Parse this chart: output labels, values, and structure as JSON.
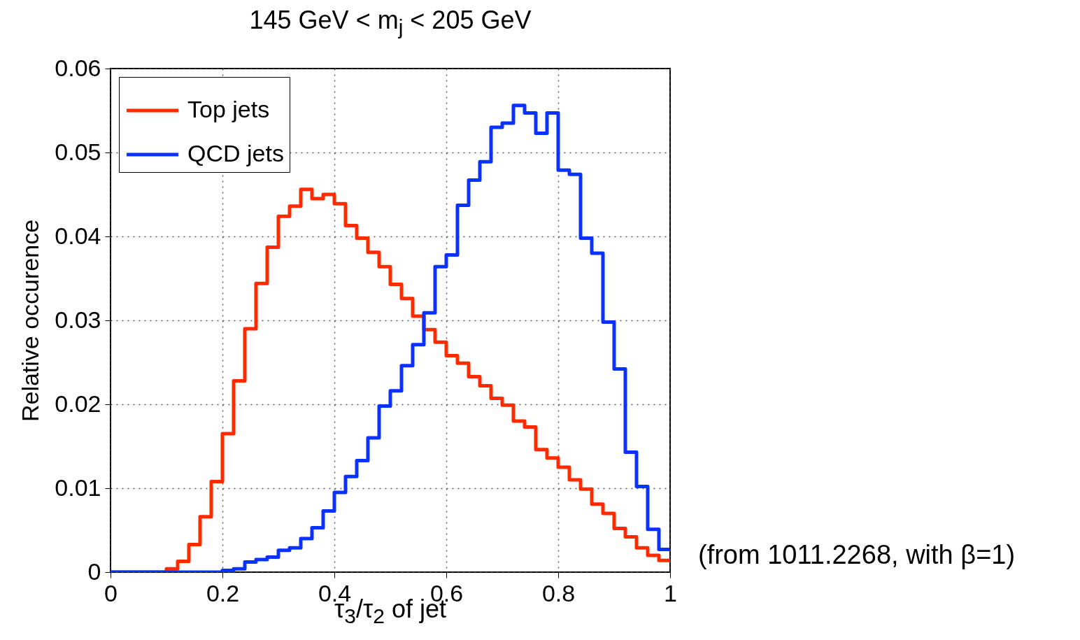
{
  "chart_data": {
    "type": "histogram",
    "title": "145 GeV < m$_{j}$ < 205 GeV",
    "xlabel": "τ$_{3}$/τ$_{2}$ of jet",
    "ylabel": "Relative occurence",
    "annotations": [
      "(from 1011.2268, with β=1)"
    ],
    "bins": [
      0,
      0.02,
      0.04,
      0.06,
      0.08,
      0.1,
      0.12,
      0.14,
      0.16,
      0.18,
      0.2,
      0.22,
      0.24,
      0.26,
      0.28,
      0.3,
      0.32,
      0.34,
      0.36,
      0.38,
      0.4,
      0.42,
      0.44,
      0.46,
      0.48,
      0.5,
      0.52,
      0.54,
      0.56,
      0.58,
      0.6,
      0.62,
      0.64,
      0.66,
      0.68,
      0.7,
      0.72,
      0.74,
      0.76,
      0.78,
      0.8,
      0.82,
      0.84,
      0.86,
      0.88,
      0.9,
      0.92,
      0.94,
      0.96,
      0.98,
      1
    ],
    "series": [
      {
        "name": "Top jets",
        "color": "#ff2a00",
        "values": [
          0,
          0,
          0,
          0,
          0,
          0.0004,
          0.0013,
          0.0033,
          0.0066,
          0.0108,
          0.0165,
          0.0228,
          0.029,
          0.0344,
          0.0387,
          0.0424,
          0.0436,
          0.0456,
          0.0445,
          0.045,
          0.0439,
          0.0413,
          0.0398,
          0.0381,
          0.0364,
          0.0343,
          0.0326,
          0.0305,
          0.0289,
          0.0274,
          0.0258,
          0.0249,
          0.0233,
          0.0222,
          0.0207,
          0.0199,
          0.018,
          0.0173,
          0.0146,
          0.0136,
          0.0125,
          0.011,
          0.0099,
          0.0081,
          0.007,
          0.0052,
          0.0042,
          0.0029,
          0.002,
          0.0014
        ]
      },
      {
        "name": "QCD jets",
        "color": "#0a32ff",
        "values": [
          0,
          0,
          0,
          0,
          0,
          0,
          0,
          0,
          0,
          0,
          0.0002,
          0.0004,
          0.0012,
          0.0015,
          0.0018,
          0.0026,
          0.0029,
          0.004,
          0.0053,
          0.0073,
          0.0095,
          0.0114,
          0.0133,
          0.016,
          0.0198,
          0.0216,
          0.0246,
          0.0271,
          0.0309,
          0.0364,
          0.0378,
          0.0437,
          0.0467,
          0.0489,
          0.053,
          0.0535,
          0.0556,
          0.0547,
          0.0523,
          0.0547,
          0.0479,
          0.0474,
          0.0398,
          0.038,
          0.0298,
          0.0242,
          0.0143,
          0.0102,
          0.0051,
          0.0027
        ]
      }
    ],
    "xlim": [
      0,
      1
    ],
    "xticks": [
      0,
      0.2,
      0.4,
      0.6,
      0.8,
      1
    ],
    "ylim": [
      0,
      0.06
    ],
    "yticks": [
      0,
      0.01,
      0.02,
      0.03,
      0.04,
      0.05,
      0.06
    ],
    "grid": true,
    "legend": "top left"
  }
}
